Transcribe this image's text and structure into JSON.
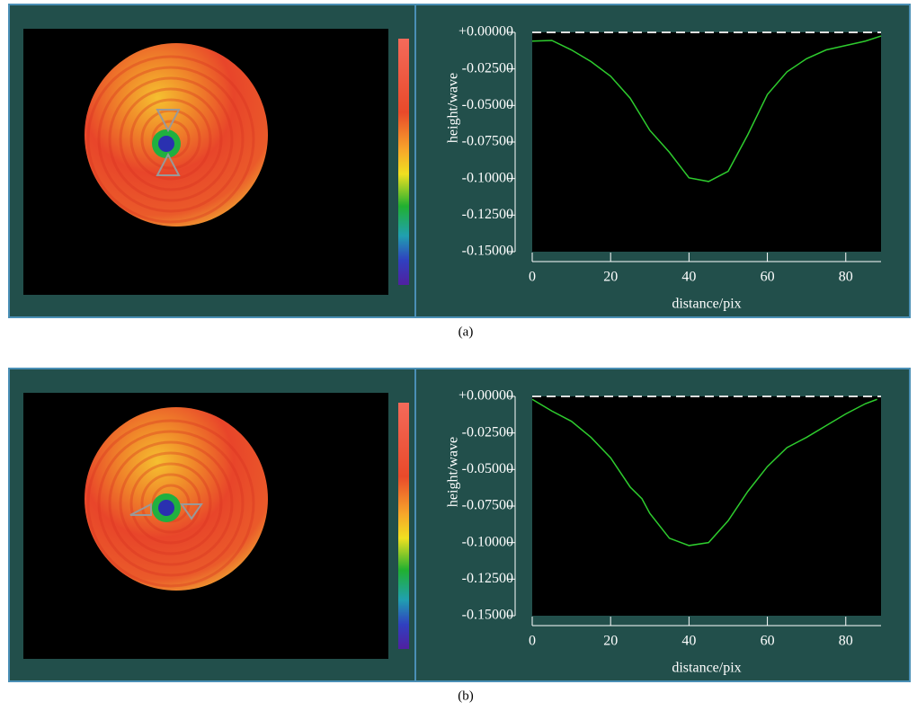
{
  "chart_data": [
    {
      "type": "line",
      "caption": "(a)",
      "ylabel": "height/wave",
      "xlabel": "distance/pix",
      "x": [
        0,
        5,
        10,
        15,
        20,
        25,
        30,
        35,
        40,
        45,
        50,
        55,
        60,
        65,
        70,
        75,
        80,
        85,
        89
      ],
      "series": [
        {
          "color": "#2ecc2e",
          "values": [
            -0.006,
            -0.0055,
            -0.012,
            -0.02,
            -0.03,
            -0.045,
            -0.067,
            -0.082,
            -0.0995,
            -0.102,
            -0.095,
            -0.07,
            -0.0425,
            -0.027,
            -0.018,
            -0.012,
            -0.009,
            -0.006,
            -0.0025
          ]
        }
      ],
      "xlim": [
        0,
        89
      ],
      "xticks": [
        0,
        20,
        40,
        60,
        80
      ],
      "ylim": [
        -0.15,
        0
      ],
      "yticks": [
        {
          "value": 0,
          "label": "+0.00000"
        },
        {
          "value": -0.025,
          "label": "-0.02500"
        },
        {
          "value": -0.05,
          "label": "-0.05000"
        },
        {
          "value": -0.075,
          "label": "-0.07500"
        },
        {
          "value": -0.1,
          "label": "-0.10000"
        },
        {
          "value": -0.125,
          "label": "-0.12500"
        },
        {
          "value": -0.15,
          "label": "-0.15000"
        }
      ]
    },
    {
      "type": "line",
      "caption": "(b)",
      "ylabel": "height/wave",
      "xlabel": "distance/pix",
      "x": [
        0,
        5,
        10,
        15,
        20,
        25,
        28,
        30,
        35,
        40,
        45,
        50,
        55,
        60,
        65,
        70,
        75,
        80,
        85,
        88
      ],
      "series": [
        {
          "color": "#2ecc2e",
          "values": [
            -0.002,
            -0.01,
            -0.017,
            -0.028,
            -0.042,
            -0.062,
            -0.07,
            -0.08,
            -0.097,
            -0.102,
            -0.1,
            -0.085,
            -0.065,
            -0.048,
            -0.035,
            -0.028,
            -0.02,
            -0.012,
            -0.005,
            -0.002
          ]
        }
      ],
      "xlim": [
        0,
        89
      ],
      "xticks": [
        0,
        20,
        40,
        60,
        80
      ],
      "ylim": [
        -0.15,
        0
      ],
      "yticks": [
        {
          "value": 0,
          "label": "+0.00000"
        },
        {
          "value": -0.025,
          "label": "-0.02500"
        },
        {
          "value": -0.05,
          "label": "-0.05000"
        },
        {
          "value": -0.075,
          "label": "-0.07500"
        },
        {
          "value": -0.1,
          "label": "-0.10000"
        },
        {
          "value": -0.125,
          "label": "-0.12500"
        },
        {
          "value": -0.15,
          "label": "-0.15000"
        }
      ]
    }
  ]
}
